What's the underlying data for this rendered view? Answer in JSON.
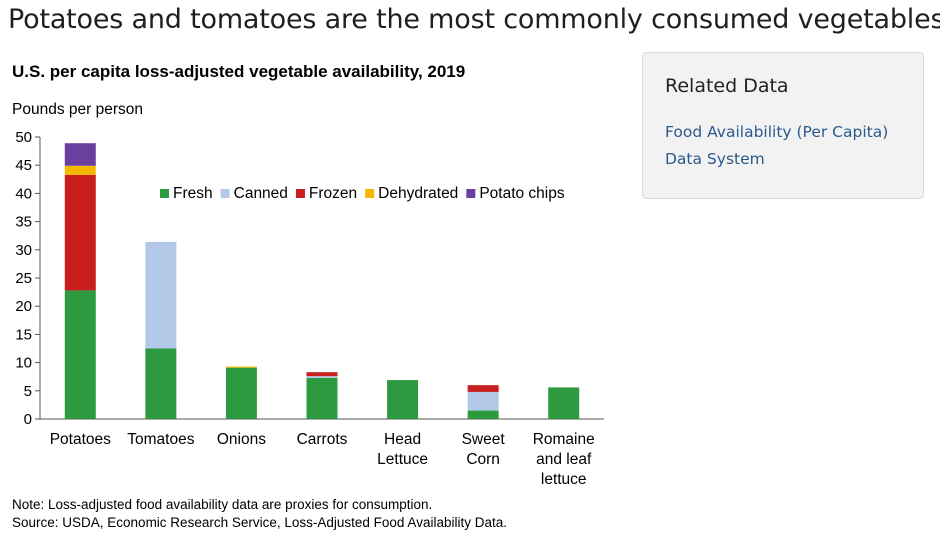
{
  "page": {
    "title": "Potatoes and tomatoes are the most commonly consumed vegetables"
  },
  "sidebar": {
    "heading": "Related Data",
    "links": [
      {
        "label": "Food Availability (Per Capita) Data System"
      }
    ]
  },
  "chart_data": {
    "type": "bar",
    "stacked": true,
    "title": "U.S. per capita loss-adjusted vegetable availability, 2019",
    "ylabel": "Pounds per person",
    "xlabel": "",
    "ylim": [
      0,
      50
    ],
    "yticks": [
      0,
      5,
      10,
      15,
      20,
      25,
      30,
      35,
      40,
      45,
      50
    ],
    "grid": false,
    "legend_position": "top-right",
    "categories": [
      [
        "Potatoes"
      ],
      [
        "Tomatoes"
      ],
      [
        "Onions"
      ],
      [
        "Carrots"
      ],
      [
        "Head",
        "Lettuce"
      ],
      [
        "Sweet",
        "Corn"
      ],
      [
        "Romaine",
        "and leaf",
        "lettuce"
      ]
    ],
    "series": [
      {
        "name": "Fresh",
        "color": "#2e9a3f",
        "values": [
          22.8,
          12.5,
          9.1,
          7.3,
          6.9,
          1.5,
          5.6
        ]
      },
      {
        "name": "Canned",
        "color": "#b4c9e8",
        "values": [
          0,
          18.9,
          0,
          0.3,
          0,
          3.3,
          0
        ]
      },
      {
        "name": "Frozen",
        "color": "#c81e1e",
        "values": [
          20.5,
          0,
          0,
          0.7,
          0,
          1.2,
          0
        ]
      },
      {
        "name": "Dehydrated",
        "color": "#f5b800",
        "values": [
          1.6,
          0,
          0.2,
          0,
          0,
          0,
          0
        ]
      },
      {
        "name": "Potato chips",
        "color": "#6b3fa0",
        "values": [
          4.0,
          0,
          0,
          0,
          0,
          0,
          0
        ]
      }
    ],
    "note": "Note: Loss-adjusted food availability data are proxies for consumption.",
    "source": "Source: USDA, Economic Research Service, Loss-Adjusted Food Availability Data."
  }
}
